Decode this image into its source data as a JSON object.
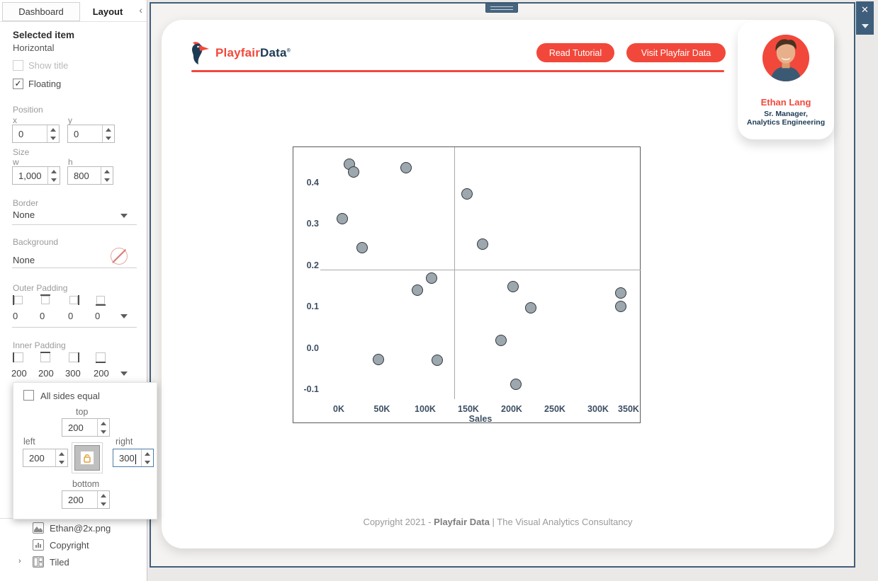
{
  "sidebar": {
    "tabs": {
      "dashboard": "Dashboard",
      "layout": "Layout",
      "collapse_icon": "‹"
    },
    "selected_item": {
      "title": "Selected item",
      "value": "Horizontal"
    },
    "show_title": {
      "label": "Show title",
      "checked": false
    },
    "floating": {
      "label": "Floating",
      "checked": true,
      "check_glyph": "✓"
    },
    "position": {
      "label": "Position",
      "x_label": "x",
      "x_value": "0",
      "y_label": "y",
      "y_value": "0"
    },
    "size": {
      "label": "Size",
      "w_label": "w",
      "w_value": "1,000",
      "h_label": "h",
      "h_value": "800"
    },
    "border": {
      "label": "Border",
      "value": "None"
    },
    "background": {
      "label": "Background",
      "value": "None"
    },
    "outer_padding": {
      "label": "Outer Padding",
      "values": [
        "0",
        "0",
        "0",
        "0"
      ]
    },
    "inner_padding": {
      "label": "Inner Padding",
      "values": [
        "200",
        "200",
        "300",
        "200"
      ]
    },
    "items": [
      {
        "label": "Ethan@2x.png",
        "icon": "image-icon"
      },
      {
        "label": "Copyright",
        "icon": "bar-chart-icon"
      },
      {
        "label": "Tiled",
        "icon": "tiled-layout-icon",
        "chevron": "›"
      }
    ]
  },
  "padding_popup": {
    "all_sides": {
      "label": "All sides equal",
      "checked": false
    },
    "top": {
      "label": "top",
      "value": "200"
    },
    "left": {
      "label": "left",
      "value": "200"
    },
    "right": {
      "label": "right",
      "value": "300"
    },
    "bottom": {
      "label": "bottom",
      "value": "200"
    },
    "lock_icon": "unlocked-padlock"
  },
  "canvas": {
    "close_icon": "✕",
    "logo": {
      "brand_first": "Playfair",
      "brand_second": "Data",
      "registered": "®"
    },
    "buttons": {
      "read_tutorial": "Read Tutorial",
      "visit": "Visit Playfair Data"
    },
    "profile": {
      "name": "Ethan Lang",
      "title_line1": "Sr. Manager,",
      "title_line2": "Analytics Engineering"
    },
    "footer": {
      "prefix": "Copyright 2021 - ",
      "brand": "Playfair Data",
      "suffix": " | The Visual Analytics Consultancy"
    },
    "colors": {
      "coral": "#f2483b",
      "navy": "#1d3b55",
      "marker_fill": "#9ca7ae",
      "marker_stroke": "#33383e",
      "selection_border": "#3f5e7b"
    }
  },
  "chart_data": {
    "type": "scatter",
    "title": "",
    "xlabel": "Sales",
    "ylabel": "",
    "x_ticks": [
      "0K",
      "50K",
      "100K",
      "150K",
      "200K",
      "250K",
      "300K",
      "350K"
    ],
    "x_tick_values": [
      0,
      50000,
      100000,
      150000,
      200000,
      250000,
      300000,
      350000
    ],
    "y_ticks": [
      "0.4",
      "0.3",
      "0.2",
      "0.1",
      "0.0",
      "-0.1"
    ],
    "y_tick_values": [
      0.4,
      0.3,
      0.2,
      0.1,
      0.0,
      -0.1
    ],
    "xlim": [
      -26000,
      350000
    ],
    "ylim": [
      -0.185,
      0.487
    ],
    "grid": false,
    "legend": "none",
    "reference_lines": {
      "vertical_x": 134000,
      "horizontal_y": 0.19
    },
    "points": [
      {
        "sales": 12000,
        "ratio": 0.446
      },
      {
        "sales": 17000,
        "ratio": 0.427
      },
      {
        "sales": 78000,
        "ratio": 0.437
      },
      {
        "sales": 148000,
        "ratio": 0.375
      },
      {
        "sales": 4000,
        "ratio": 0.315
      },
      {
        "sales": 27000,
        "ratio": 0.245
      },
      {
        "sales": 166000,
        "ratio": 0.252
      },
      {
        "sales": 107000,
        "ratio": 0.17
      },
      {
        "sales": 91000,
        "ratio": 0.142
      },
      {
        "sales": 202000,
        "ratio": 0.15
      },
      {
        "sales": 222000,
        "ratio": 0.098
      },
      {
        "sales": 326000,
        "ratio": 0.135
      },
      {
        "sales": 326000,
        "ratio": 0.102
      },
      {
        "sales": 188000,
        "ratio": 0.02
      },
      {
        "sales": 46000,
        "ratio": -0.027
      },
      {
        "sales": 114000,
        "ratio": -0.028
      },
      {
        "sales": 205000,
        "ratio": -0.087
      }
    ]
  }
}
